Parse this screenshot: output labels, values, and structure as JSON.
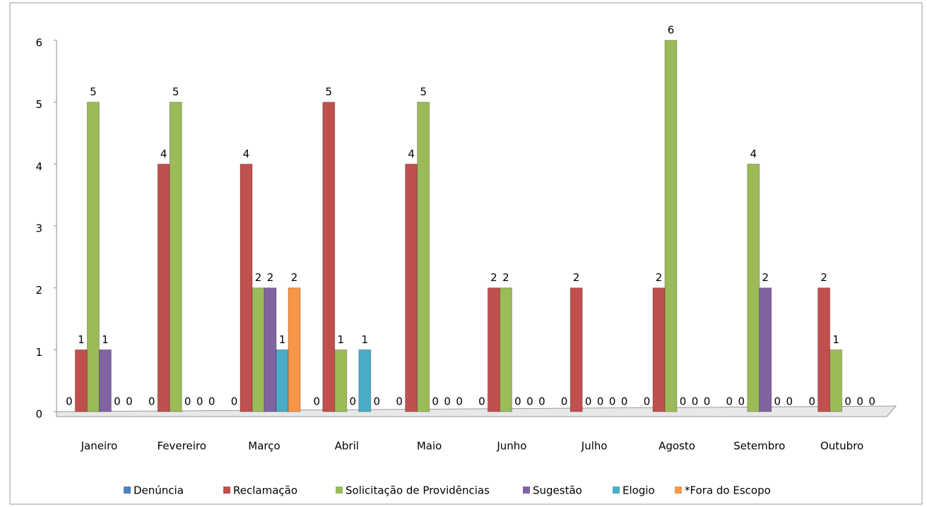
{
  "chart_data": {
    "type": "bar",
    "categories": [
      "Janeiro",
      "Fevereiro",
      "Março",
      "Abril",
      "Maio",
      "Junho",
      "Julho",
      "Agosto",
      "Setembro",
      "Outubro"
    ],
    "series": [
      {
        "name": "Denúncia",
        "color": "#4f81bd",
        "values": [
          0,
          0,
          0,
          0,
          0,
          0,
          0,
          0,
          0,
          0
        ]
      },
      {
        "name": "Reclamação",
        "color": "#c0504d",
        "values": [
          1,
          4,
          4,
          5,
          4,
          2,
          2,
          2,
          0,
          2
        ]
      },
      {
        "name": "Solicitação de Providências",
        "color": "#9bbb59",
        "values": [
          5,
          5,
          2,
          1,
          5,
          2,
          0,
          6,
          4,
          1
        ]
      },
      {
        "name": "Sugestão",
        "color": "#8064a2",
        "values": [
          1,
          0,
          2,
          0,
          0,
          0,
          0,
          0,
          2,
          0
        ]
      },
      {
        "name": "Elogio",
        "color": "#4bacc6",
        "values": [
          0,
          0,
          1,
          1,
          0,
          0,
          0,
          0,
          0,
          0
        ]
      },
      {
        "name": "*Fora do Escopo",
        "color": "#f79646",
        "values": [
          0,
          0,
          2,
          0,
          0,
          0,
          0,
          0,
          0,
          0
        ]
      }
    ],
    "ylim": [
      0,
      6
    ],
    "yticks": [
      0,
      1,
      2,
      3,
      4,
      5,
      6
    ],
    "legend": "bottom"
  }
}
